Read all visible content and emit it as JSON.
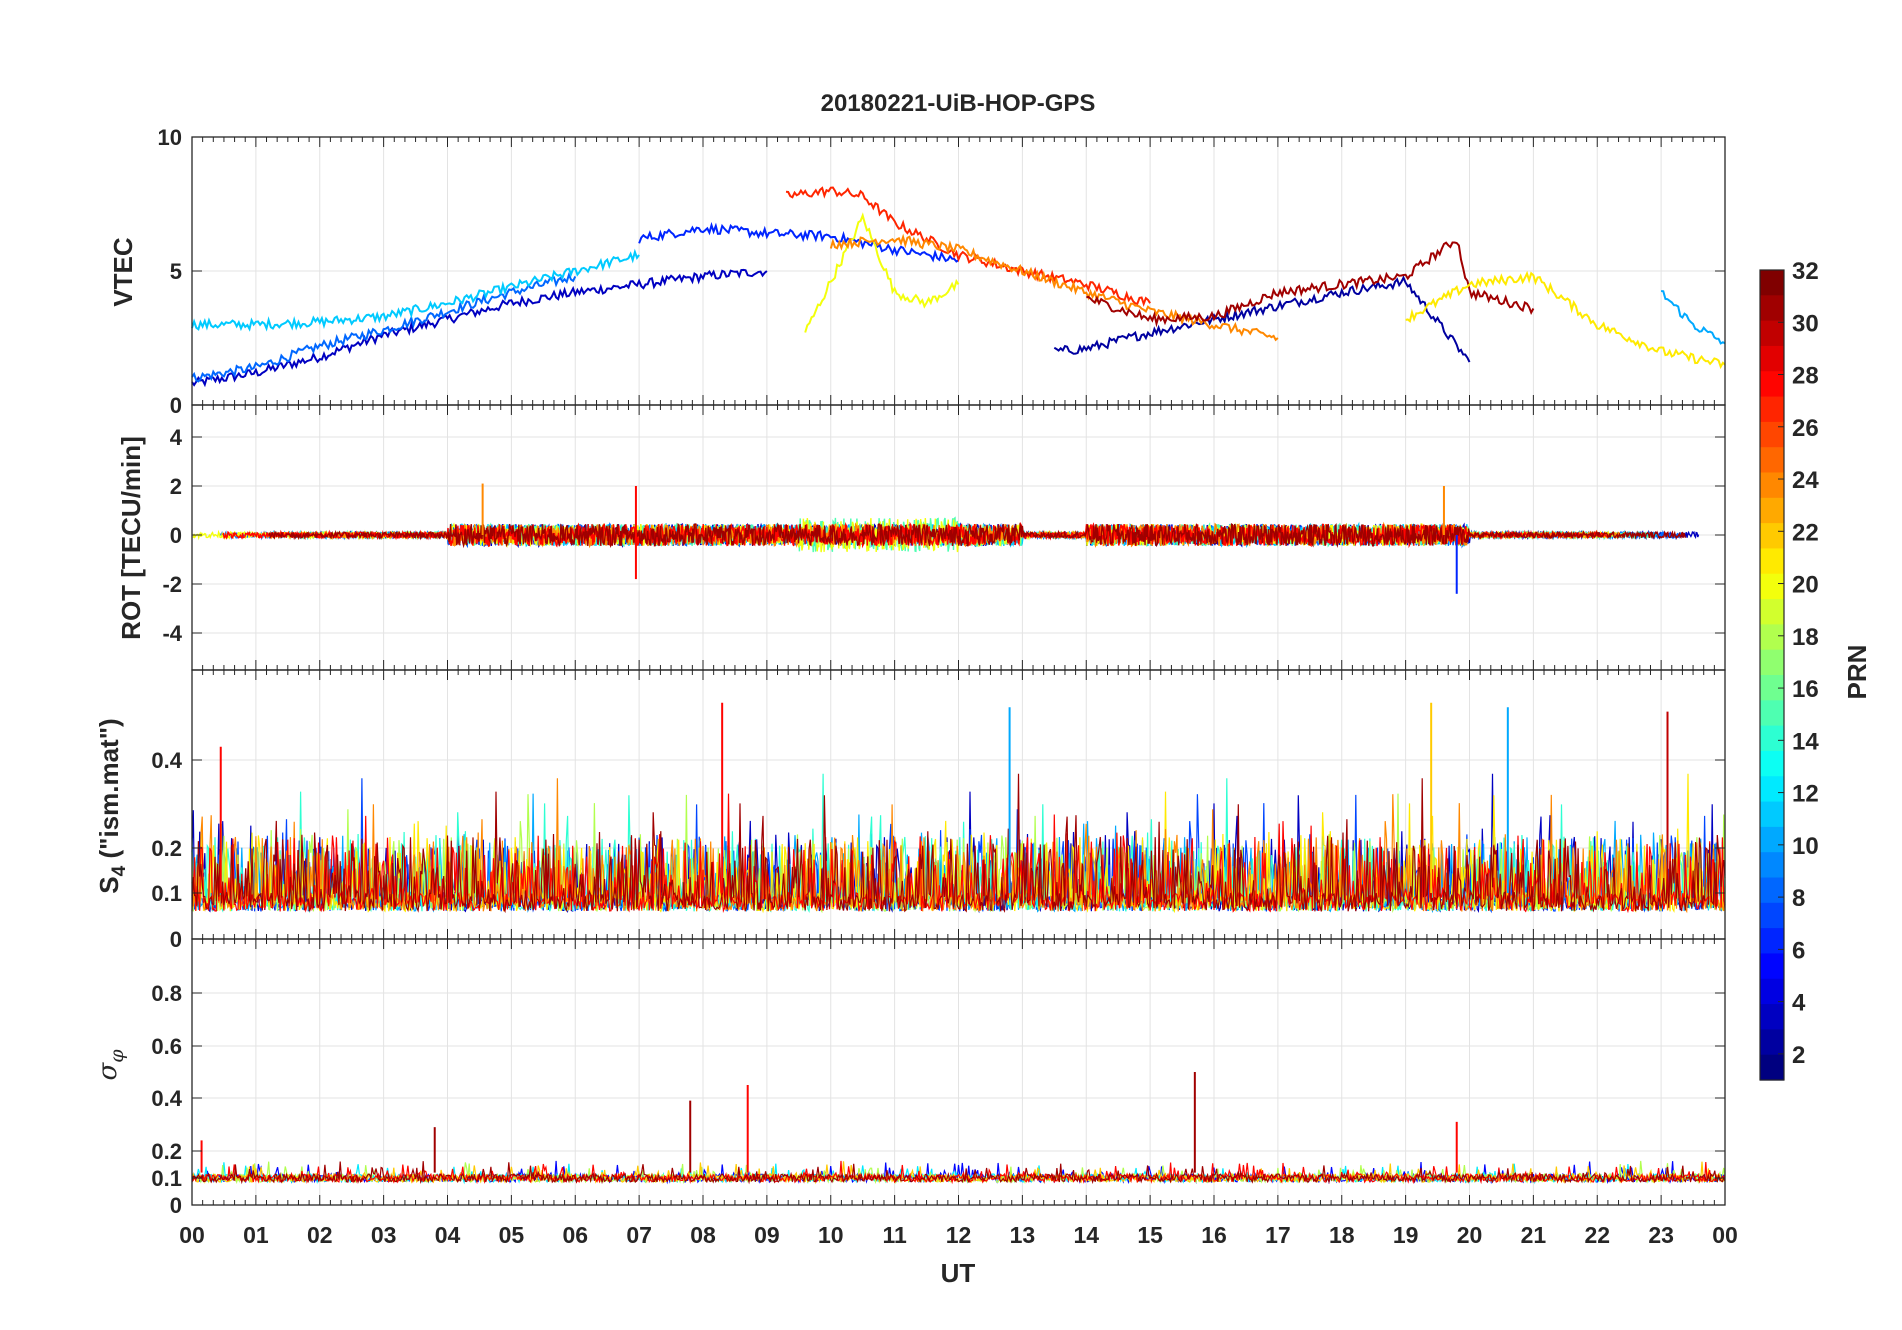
{
  "title": "20180221-UiB-HOP-GPS",
  "xlabel": "UT",
  "x_ticks": [
    "00",
    "01",
    "02",
    "03",
    "04",
    "05",
    "06",
    "07",
    "08",
    "09",
    "10",
    "11",
    "12",
    "13",
    "14",
    "15",
    "16",
    "17",
    "18",
    "19",
    "20",
    "21",
    "22",
    "23",
    "00"
  ],
  "colorbar": {
    "label": "PRN",
    "colormap": "jet",
    "range": [
      1,
      32
    ],
    "ticks": [
      "2",
      "4",
      "6",
      "8",
      "10",
      "12",
      "14",
      "16",
      "18",
      "20",
      "22",
      "24",
      "26",
      "28",
      "30",
      "32"
    ]
  },
  "chart_data": [
    {
      "type": "line",
      "name": "vtec-panel",
      "ylabel": "VTEC",
      "ylim": [
        0,
        10
      ],
      "y_ticks": [
        "0",
        "5",
        "10"
      ],
      "grid": true,
      "series_encoding": "one line per GPS PRN, colored by PRN (jet colormap)",
      "series": [
        {
          "prn": 3,
          "x": [
            0,
            1,
            2,
            3,
            4,
            5,
            6,
            7,
            8,
            9
          ],
          "values": [
            0.8,
            1.2,
            1.8,
            2.6,
            3.2,
            3.8,
            4.2,
            4.5,
            4.8,
            5.0
          ]
        },
        {
          "prn": 8,
          "x": [
            0,
            1,
            2,
            3,
            4,
            5,
            6
          ],
          "values": [
            1.0,
            1.4,
            2.2,
            2.8,
            3.5,
            4.2,
            4.8
          ]
        },
        {
          "prn": 11,
          "x": [
            0,
            1,
            2,
            3,
            4,
            5,
            6,
            7
          ],
          "values": [
            3.0,
            3.0,
            3.1,
            3.3,
            3.8,
            4.4,
            5.0,
            5.6
          ]
        },
        {
          "prn": 2,
          "x": [
            13.5,
            14,
            15,
            16,
            17,
            18,
            19,
            20
          ],
          "values": [
            2.0,
            2.1,
            2.7,
            3.2,
            3.7,
            4.2,
            4.6,
            1.6
          ]
        },
        {
          "prn": 6,
          "x": [
            7,
            8,
            9,
            10,
            11,
            12
          ],
          "values": [
            6.2,
            6.6,
            6.4,
            6.3,
            5.8,
            5.4
          ]
        },
        {
          "prn": 20,
          "x": [
            9.6,
            10,
            10.5,
            11,
            11.5,
            12
          ],
          "values": [
            2.7,
            4.6,
            7.0,
            4.2,
            3.8,
            4.5
          ]
        },
        {
          "prn": 27,
          "x": [
            9.3,
            10,
            10.5,
            11,
            12,
            13,
            14,
            15
          ],
          "values": [
            7.8,
            8.0,
            7.8,
            6.8,
            5.6,
            5.0,
            4.5,
            3.8
          ]
        },
        {
          "prn": 24,
          "x": [
            10,
            11,
            12,
            13,
            14,
            15,
            16,
            17
          ],
          "values": [
            6.0,
            6.2,
            5.8,
            5.0,
            4.2,
            3.5,
            3.0,
            2.5
          ]
        },
        {
          "prn": 31,
          "x": [
            14,
            15,
            16,
            17,
            18,
            19,
            19.8,
            20,
            21
          ],
          "values": [
            4.0,
            3.2,
            3.3,
            4.2,
            4.5,
            4.8,
            6.2,
            4.2,
            3.6
          ]
        },
        {
          "prn": 21,
          "x": [
            19,
            20,
            21,
            22,
            23,
            24
          ],
          "values": [
            3.2,
            4.5,
            4.8,
            3.0,
            2.0,
            1.5
          ]
        },
        {
          "prn": 10,
          "x": [
            23,
            23.5,
            24
          ],
          "values": [
            4.2,
            3.0,
            2.3
          ]
        }
      ]
    },
    {
      "type": "line",
      "name": "rot-panel",
      "ylabel": "ROT [TECU/min]",
      "ylim": [
        -5.5,
        5.5
      ],
      "y_ticks": [
        "-4",
        "-2",
        "0",
        "2",
        "4"
      ],
      "grid": true,
      "notable_spikes": [
        {
          "prn": 24,
          "x": 4.55,
          "value": 2.1
        },
        {
          "prn": 28,
          "x": 6.95,
          "value": 2.0
        },
        {
          "prn": 28,
          "x": 6.95,
          "value": -1.8
        },
        {
          "prn": 6,
          "x": 19.8,
          "value": -2.4
        },
        {
          "prn": 24,
          "x": 19.6,
          "value": 2.0
        }
      ]
    },
    {
      "type": "line",
      "name": "s4-panel",
      "ylabel": "S4 (\"ism.mat\")",
      "ylabel_main": "S",
      "ylabel_sub": "4",
      "ylabel_rest": " (\"ism.mat\")",
      "y_ticks": [
        "0",
        "0.1",
        "0.2",
        "0.4"
      ],
      "grid": true,
      "baseline": 0.06,
      "notable_peaks": [
        {
          "prn": 28,
          "x": 0.45,
          "value": 0.43
        },
        {
          "prn": 28,
          "x": 8.3,
          "value": 0.53
        },
        {
          "prn": 10,
          "x": 12.8,
          "value": 0.52
        },
        {
          "prn": 22,
          "x": 19.4,
          "value": 0.53
        },
        {
          "prn": 10,
          "x": 20.6,
          "value": 0.52
        },
        {
          "prn": 30,
          "x": 23.1,
          "value": 0.51
        }
      ]
    },
    {
      "type": "line",
      "name": "sigma-phi-panel",
      "ylabel": "σφ",
      "ylabel_main": "σ",
      "ylabel_sub": "φ",
      "y_ticks": [
        "0",
        "0.1",
        "0.2",
        "0.4",
        "0.6",
        "0.8"
      ],
      "grid": true,
      "baseline": 0.11,
      "notable_peaks": [
        {
          "prn": 28,
          "x": 0.15,
          "value": 0.24
        },
        {
          "prn": 31,
          "x": 3.8,
          "value": 0.29
        },
        {
          "prn": 31,
          "x": 7.8,
          "value": 0.39
        },
        {
          "prn": 28,
          "x": 8.7,
          "value": 0.45
        },
        {
          "prn": 31,
          "x": 15.7,
          "value": 0.5
        },
        {
          "prn": 28,
          "x": 19.8,
          "value": 0.31
        }
      ]
    }
  ]
}
